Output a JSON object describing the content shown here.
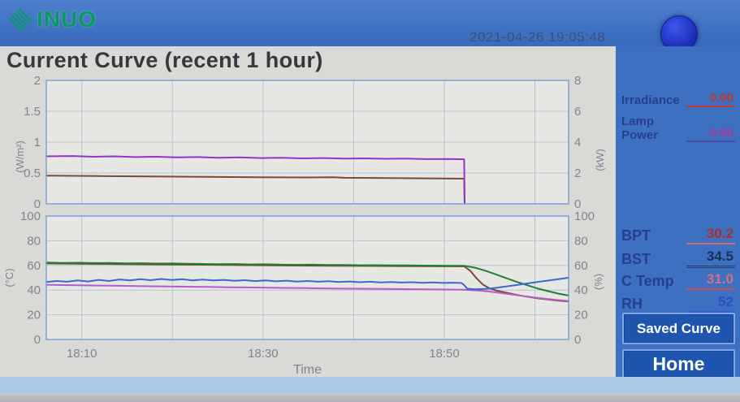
{
  "header": {
    "brand": "SINUO",
    "logo_text": "INUO",
    "timestamp": "2021-04-26  19:05:48"
  },
  "title": "Current Curve (recent 1 hour)",
  "side_panel": {
    "readouts_top": [
      {
        "label": "Irradiance",
        "value": "0.00",
        "value_color": "#c0392e",
        "underline_color": "#c0392e"
      },
      {
        "label": "Lamp Power",
        "value": "0.00",
        "value_color": "#a83a96",
        "underline_color": "#4a4898"
      }
    ],
    "readouts_main": [
      {
        "label": "BPT",
        "value": "30.2",
        "value_color": "#a93129",
        "underline_color": "#d56a6a"
      },
      {
        "label": "BST",
        "value": "34.5",
        "value_color": "#1d2f55",
        "underline_color": "#24406e"
      },
      {
        "label": "C Temp",
        "value": "31.0",
        "value_color": "#d4707e",
        "underline_color": "#cf4a55"
      },
      {
        "label": "RH",
        "value": "52",
        "value_color": "#2b50c4",
        "underline_color": "#3a5cd6"
      }
    ],
    "buttons": {
      "saved_curve": "Saved Curve",
      "home": "Home"
    }
  },
  "colors": {
    "panel_blue": "#3e70c2",
    "plot_background": "#e7e8e4",
    "grid": "#b9c1d2",
    "plot_border": "#7aa2d6",
    "tick_text": "#7d8691"
  },
  "chart_data": [
    {
      "type": "line",
      "name": "irradiance-lamp-power",
      "x_axis": {
        "label": "",
        "tick_labels": [
          "18:10",
          "18:30",
          "18:50"
        ]
      },
      "left_axis": {
        "label": "(W/m²)",
        "ticks": [
          0,
          0.5,
          1,
          1.5,
          2
        ],
        "range": [
          0,
          2
        ]
      },
      "right_axis": {
        "label": "(kW)",
        "ticks": [
          0,
          2,
          4,
          6,
          8
        ],
        "range": [
          0,
          8
        ]
      },
      "grid": true,
      "series": [
        {
          "name": "Irradiance",
          "axis": "left",
          "color": "#7d4a32",
          "points": [
            [
              0,
              0.456
            ],
            [
              0.1,
              0.45
            ],
            [
              0.2,
              0.444
            ],
            [
              0.3,
              0.438
            ],
            [
              0.4,
              0.432
            ],
            [
              0.5,
              0.427
            ],
            [
              0.55,
              0.43
            ],
            [
              0.57,
              0.423
            ],
            [
              0.6,
              0.421
            ],
            [
              0.7,
              0.414
            ],
            [
              0.8,
              0.408
            ],
            [
              0.801,
              0.0
            ]
          ]
        },
        {
          "name": "Lamp Power",
          "axis": "right",
          "color": "#9233cc",
          "points": [
            [
              0,
              3.08
            ],
            [
              0.05,
              3.1
            ],
            [
              0.09,
              3.05
            ],
            [
              0.13,
              3.08
            ],
            [
              0.17,
              3.03
            ],
            [
              0.21,
              3.05
            ],
            [
              0.25,
              3.01
            ],
            [
              0.29,
              3.03
            ],
            [
              0.33,
              2.99
            ],
            [
              0.37,
              3.01
            ],
            [
              0.41,
              2.97
            ],
            [
              0.45,
              2.99
            ],
            [
              0.49,
              2.95
            ],
            [
              0.53,
              2.97
            ],
            [
              0.57,
              2.93
            ],
            [
              0.61,
              2.95
            ],
            [
              0.65,
              2.92
            ],
            [
              0.69,
              2.93
            ],
            [
              0.73,
              2.9
            ],
            [
              0.77,
              2.91
            ],
            [
              0.8,
              2.89
            ],
            [
              0.801,
              0.05
            ]
          ]
        }
      ]
    },
    {
      "type": "line",
      "name": "temperature-humidity",
      "x_axis": {
        "label": "Time",
        "tick_labels": [
          "18:10",
          "18:30",
          "18:50"
        ]
      },
      "left_axis": {
        "label": "(°C)",
        "ticks": [
          0,
          20,
          40,
          60,
          80,
          100
        ],
        "range": [
          0,
          100
        ]
      },
      "right_axis": {
        "label": "(%)",
        "ticks": [
          0,
          20,
          40,
          60,
          80,
          100
        ],
        "range": [
          0,
          100
        ]
      },
      "grid": true,
      "series": [
        {
          "name": "BPT",
          "axis": "left",
          "color": "#7a4a35",
          "points": [
            [
              0,
              61.6
            ],
            [
              0.1,
              61.2
            ],
            [
              0.2,
              60.8
            ],
            [
              0.3,
              60.5
            ],
            [
              0.4,
              60.1
            ],
            [
              0.5,
              59.8
            ],
            [
              0.6,
              59.6
            ],
            [
              0.7,
              59.4
            ],
            [
              0.8,
              59.2
            ],
            [
              0.812,
              55.5
            ],
            [
              0.824,
              49.5
            ],
            [
              0.836,
              44.5
            ],
            [
              0.848,
              41.5
            ],
            [
              0.862,
              39.6
            ],
            [
              0.88,
              38.0
            ],
            [
              0.9,
              36.2
            ],
            [
              0.92,
              34.7
            ],
            [
              0.94,
              33.4
            ],
            [
              0.96,
              32.4
            ],
            [
              0.98,
              31.5
            ],
            [
              1,
              30.8
            ]
          ]
        },
        {
          "name": "BST",
          "axis": "left",
          "color": "#1f8030",
          "points": [
            [
              0,
              62.3
            ],
            [
              0.03,
              62.0
            ],
            [
              0.06,
              62.2
            ],
            [
              0.09,
              61.9
            ],
            [
              0.12,
              62.0
            ],
            [
              0.15,
              61.7
            ],
            [
              0.18,
              61.8
            ],
            [
              0.21,
              61.5
            ],
            [
              0.24,
              61.6
            ],
            [
              0.27,
              61.3
            ],
            [
              0.3,
              61.2
            ],
            [
              0.33,
              61.0
            ],
            [
              0.36,
              61.1
            ],
            [
              0.39,
              60.8
            ],
            [
              0.42,
              60.9
            ],
            [
              0.45,
              60.6
            ],
            [
              0.48,
              60.5
            ],
            [
              0.51,
              60.6
            ],
            [
              0.54,
              60.3
            ],
            [
              0.57,
              60.4
            ],
            [
              0.6,
              60.1
            ],
            [
              0.63,
              60.2
            ],
            [
              0.66,
              60.0
            ],
            [
              0.69,
              60.0
            ],
            [
              0.72,
              59.9
            ],
            [
              0.75,
              59.8
            ],
            [
              0.78,
              59.7
            ],
            [
              0.8,
              59.7
            ],
            [
              0.82,
              58.2
            ],
            [
              0.84,
              55.8
            ],
            [
              0.86,
              52.8
            ],
            [
              0.88,
              49.8
            ],
            [
              0.9,
              46.8
            ],
            [
              0.92,
              44.0
            ],
            [
              0.94,
              41.4
            ],
            [
              0.96,
              39.2
            ],
            [
              0.98,
              37.2
            ],
            [
              1,
              35.6
            ]
          ]
        },
        {
          "name": "C Temp",
          "axis": "left",
          "color": "#b55ccb",
          "points": [
            [
              0,
              44.3
            ],
            [
              0.05,
              44.0
            ],
            [
              0.1,
              43.7
            ],
            [
              0.15,
              43.4
            ],
            [
              0.2,
              43.1
            ],
            [
              0.25,
              42.8
            ],
            [
              0.3,
              42.6
            ],
            [
              0.35,
              42.3
            ],
            [
              0.4,
              42.1
            ],
            [
              0.45,
              41.8
            ],
            [
              0.5,
              41.6
            ],
            [
              0.55,
              41.3
            ],
            [
              0.6,
              41.1
            ],
            [
              0.65,
              40.9
            ],
            [
              0.7,
              40.7
            ],
            [
              0.75,
              40.5
            ],
            [
              0.8,
              40.3
            ],
            [
              0.835,
              39.4
            ],
            [
              0.86,
              38.2
            ],
            [
              0.89,
              36.5
            ],
            [
              0.92,
              34.8
            ],
            [
              0.95,
              33.2
            ],
            [
              0.98,
              31.9
            ],
            [
              1,
              31.2
            ]
          ]
        },
        {
          "name": "RH",
          "axis": "right",
          "color": "#3c67d1",
          "points": [
            [
              0,
              46.6
            ],
            [
              0.02,
              47.4
            ],
            [
              0.04,
              46.8
            ],
            [
              0.06,
              47.9
            ],
            [
              0.08,
              47.0
            ],
            [
              0.1,
              48.3
            ],
            [
              0.12,
              47.4
            ],
            [
              0.14,
              48.6
            ],
            [
              0.16,
              47.8
            ],
            [
              0.18,
              48.8
            ],
            [
              0.2,
              48.0
            ],
            [
              0.22,
              49.0
            ],
            [
              0.24,
              48.2
            ],
            [
              0.26,
              48.8
            ],
            [
              0.28,
              47.9
            ],
            [
              0.3,
              48.5
            ],
            [
              0.32,
              47.8
            ],
            [
              0.34,
              48.3
            ],
            [
              0.36,
              47.5
            ],
            [
              0.38,
              48.0
            ],
            [
              0.4,
              47.3
            ],
            [
              0.42,
              47.8
            ],
            [
              0.44,
              47.1
            ],
            [
              0.46,
              47.6
            ],
            [
              0.48,
              46.9
            ],
            [
              0.5,
              47.4
            ],
            [
              0.52,
              46.8
            ],
            [
              0.54,
              47.2
            ],
            [
              0.56,
              46.6
            ],
            [
              0.58,
              47.0
            ],
            [
              0.6,
              46.4
            ],
            [
              0.62,
              46.8
            ],
            [
              0.64,
              46.2
            ],
            [
              0.66,
              46.6
            ],
            [
              0.68,
              46.1
            ],
            [
              0.7,
              46.4
            ],
            [
              0.72,
              45.9
            ],
            [
              0.74,
              46.2
            ],
            [
              0.76,
              45.8
            ],
            [
              0.78,
              46.0
            ],
            [
              0.795,
              45.7
            ],
            [
              0.8,
              44.0
            ],
            [
              0.806,
              41.2
            ],
            [
              0.82,
              40.6
            ],
            [
              0.84,
              40.9
            ],
            [
              0.86,
              41.8
            ],
            [
              0.88,
              42.9
            ],
            [
              0.9,
              44.1
            ],
            [
              0.92,
              45.3
            ],
            [
              0.94,
              46.5
            ],
            [
              0.96,
              47.7
            ],
            [
              0.98,
              48.9
            ],
            [
              1,
              50.0
            ]
          ]
        }
      ]
    }
  ]
}
